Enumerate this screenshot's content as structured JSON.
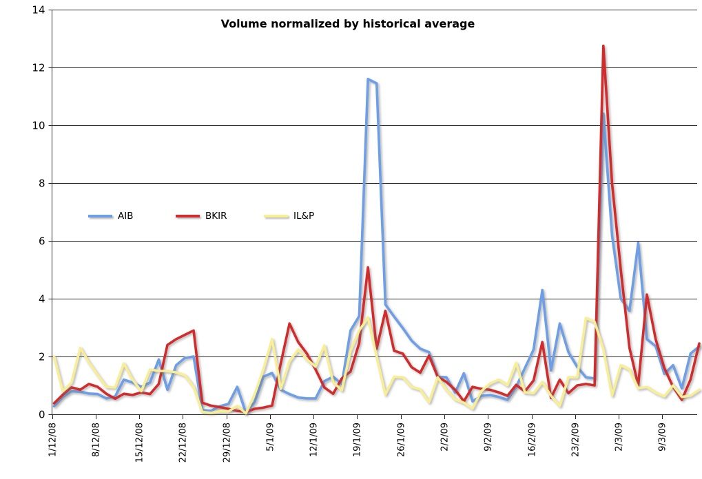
{
  "chart_data": {
    "type": "line",
    "title": "Volume normalized by historical average",
    "x_tick_labels": [
      "1/12/08",
      "8/12/08",
      "15/12/08",
      "22/12/08",
      "29/12/08",
      "5/1/09",
      "12/1/09",
      "19/1/09",
      "26/1/09",
      "2/2/09",
      "9/2/09",
      "16/2/09",
      "23/2/09",
      "2/3/09",
      "9/3/09"
    ],
    "points_per_tick": 5,
    "x_points_total": 75,
    "y_ticks": [
      0,
      2,
      4,
      6,
      8,
      10,
      12,
      14
    ],
    "ylim": [
      0,
      14
    ],
    "grid": "horizontal-only",
    "legend_position": "inside-upper-left",
    "background_color": "#ffffff",
    "gridline_color": "#262626",
    "series": [
      {
        "name": "AIB",
        "color": "#6E9FE6",
        "values": [
          0.28,
          0.6,
          0.8,
          0.78,
          0.72,
          0.7,
          0.55,
          0.62,
          1.2,
          1.1,
          0.95,
          1.1,
          1.9,
          0.85,
          1.7,
          1.95,
          2.0,
          0.15,
          0.12,
          0.28,
          0.36,
          0.95,
          0.05,
          0.42,
          1.3,
          1.43,
          0.85,
          0.7,
          0.58,
          0.55,
          0.55,
          1.15,
          1.3,
          1.05,
          2.9,
          3.4,
          11.6,
          11.45,
          3.8,
          3.38,
          2.98,
          2.55,
          2.27,
          2.15,
          1.3,
          1.28,
          0.75,
          1.42,
          0.45,
          0.64,
          0.67,
          0.6,
          0.5,
          0.95,
          1.6,
          2.24,
          4.3,
          1.52,
          3.14,
          2.15,
          1.64,
          1.28,
          1.24,
          10.4,
          6.2,
          4.0,
          3.58,
          5.93,
          2.6,
          2.36,
          1.4,
          1.7,
          0.9,
          2.1,
          2.35
        ]
      },
      {
        "name": "BKIR",
        "color": "#D22B2B",
        "values": [
          0.38,
          0.68,
          0.93,
          0.85,
          1.05,
          0.95,
          0.71,
          0.54,
          0.71,
          0.67,
          0.76,
          0.7,
          1.05,
          2.4,
          2.6,
          2.75,
          2.9,
          0.4,
          0.3,
          0.25,
          0.19,
          0.12,
          0.08,
          0.19,
          0.23,
          0.3,
          1.76,
          3.14,
          2.5,
          2.1,
          1.55,
          0.93,
          0.71,
          1.24,
          1.48,
          2.47,
          5.08,
          2.27,
          3.58,
          2.2,
          2.1,
          1.63,
          1.44,
          2.03,
          1.3,
          1.12,
          0.85,
          0.45,
          0.95,
          0.88,
          0.85,
          0.76,
          0.64,
          1.02,
          0.79,
          1.17,
          2.5,
          0.57,
          1.2,
          0.73,
          1.0,
          1.05,
          1.0,
          12.75,
          8.0,
          5.0,
          2.3,
          1.0,
          4.14,
          2.6,
          1.6,
          0.95,
          0.5,
          1.2,
          2.45
        ]
      },
      {
        "name": "IL&P",
        "color": "#F8EE96",
        "values": [
          2.0,
          0.8,
          1.1,
          2.3,
          1.79,
          1.36,
          0.95,
          0.93,
          1.76,
          1.2,
          0.8,
          1.55,
          1.5,
          1.5,
          1.45,
          1.35,
          0.95,
          0.08,
          0.05,
          0.1,
          0.1,
          0.29,
          0.03,
          0.69,
          1.55,
          2.6,
          0.88,
          1.83,
          2.24,
          1.9,
          1.65,
          2.38,
          1.12,
          0.83,
          2.2,
          2.9,
          3.35,
          2.0,
          0.68,
          1.3,
          1.28,
          0.95,
          0.86,
          0.42,
          1.28,
          0.85,
          0.52,
          0.4,
          0.2,
          0.8,
          1.07,
          1.2,
          1.0,
          1.78,
          0.76,
          0.73,
          1.12,
          0.64,
          0.29,
          1.28,
          1.28,
          3.33,
          3.2,
          2.26,
          0.65,
          1.7,
          1.55,
          0.9,
          0.95,
          0.75,
          0.62,
          1.0,
          0.6,
          0.65,
          0.85
        ]
      }
    ]
  }
}
